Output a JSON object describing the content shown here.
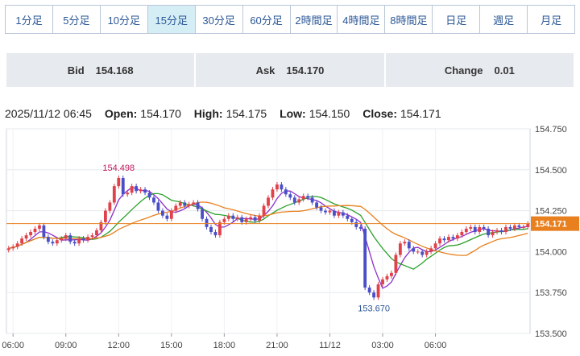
{
  "tabs": [
    {
      "label": "1分足",
      "active": false
    },
    {
      "label": "5分足",
      "active": false
    },
    {
      "label": "10分足",
      "active": false
    },
    {
      "label": "15分足",
      "active": true
    },
    {
      "label": "30分足",
      "active": false
    },
    {
      "label": "60分足",
      "active": false
    },
    {
      "label": "2時間足",
      "active": false
    },
    {
      "label": "4時間足",
      "active": false
    },
    {
      "label": "8時間足",
      "active": false
    },
    {
      "label": "日足",
      "active": false
    },
    {
      "label": "週足",
      "active": false
    },
    {
      "label": "月足",
      "active": false
    }
  ],
  "quote": {
    "bid_label": "Bid",
    "bid_value": "154.168",
    "ask_label": "Ask",
    "ask_value": "154.170",
    "change_label": "Change",
    "change_value": "0.01"
  },
  "ohlc": {
    "datetime": "2025/11/12 06:45",
    "open_label": "Open:",
    "open": "154.170",
    "high_label": "High:",
    "high": "154.175",
    "low_label": "Low:",
    "low": "154.150",
    "close_label": "Close:",
    "close": "154.171"
  },
  "colors": {
    "up": "#e0414a",
    "down": "#4a4fc8",
    "ma_short": "#8b2fc9",
    "ma_mid": "#2ca02c",
    "ma_long": "#e8801f",
    "last_price": "#e8801f",
    "tab_active_bg": "#d5eef6",
    "tab_text": "#2b5796"
  },
  "chart_data": {
    "type": "candlestick",
    "interval": "15分足",
    "ylim": [
      153.5,
      154.75
    ],
    "y_ticks": [
      "154.750",
      "154.500",
      "154.250",
      "154.000",
      "153.750",
      "153.500"
    ],
    "x_ticks": [
      "06:00",
      "09:00",
      "12:00",
      "15:00",
      "18:00",
      "21:00",
      "11/12",
      "03:00",
      "06:00"
    ],
    "last_price": "154.171",
    "annotations": [
      {
        "text": "154.498",
        "kind": "high"
      },
      {
        "text": "153.670",
        "kind": "low"
      }
    ],
    "grid": true,
    "series": [
      {
        "name": "close",
        "values": [
          154.02,
          154.03,
          154.05,
          154.08,
          154.1,
          154.12,
          154.14,
          154.16,
          154.09,
          154.06,
          154.05,
          154.07,
          154.08,
          154.1,
          154.06,
          154.05,
          154.08,
          154.07,
          154.09,
          154.1,
          154.13,
          154.18,
          154.25,
          154.3,
          154.4,
          154.45,
          154.35,
          154.36,
          154.4,
          154.37,
          154.38,
          154.36,
          154.33,
          154.3,
          154.25,
          154.22,
          154.2,
          154.25,
          154.28,
          154.3,
          154.28,
          154.29,
          154.3,
          154.26,
          154.2,
          154.15,
          154.12,
          154.1,
          154.18,
          154.2,
          154.22,
          154.2,
          154.21,
          154.18,
          154.2,
          154.21,
          154.19,
          154.22,
          154.28,
          154.33,
          154.38,
          154.41,
          154.38,
          154.35,
          154.33,
          154.3,
          154.32,
          154.34,
          154.33,
          154.3,
          154.27,
          154.25,
          154.24,
          154.25,
          154.22,
          154.24,
          154.22,
          154.2,
          154.18,
          154.15,
          154.14,
          153.78,
          153.75,
          153.72,
          153.8,
          153.83,
          153.85,
          153.87,
          153.98,
          154.05,
          154.06,
          154.02,
          154.0,
          154.0,
          153.98,
          154.0,
          154.02,
          154.05,
          154.08,
          154.07,
          154.09,
          154.08,
          154.1,
          154.12,
          154.14,
          154.15,
          154.12,
          154.15,
          154.14,
          154.1,
          154.12,
          154.13,
          154.12,
          154.15,
          154.14,
          154.16,
          154.15,
          154.15,
          154.171
        ]
      }
    ]
  }
}
